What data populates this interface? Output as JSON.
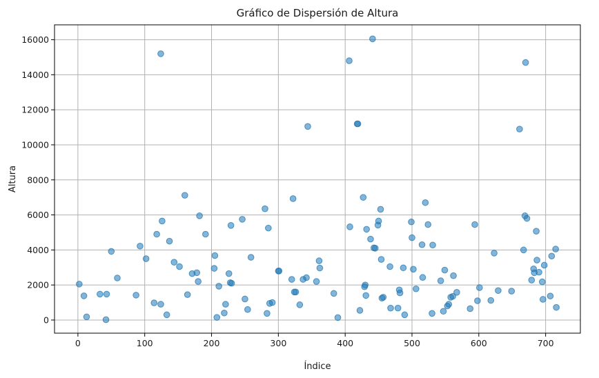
{
  "chart_data": {
    "type": "scatter",
    "title": "Gráfico de Dispersión de Altura",
    "xlabel": "Índice",
    "ylabel": "Altura",
    "xlim": [
      -35,
      752
    ],
    "ylim": [
      -750,
      16850
    ],
    "xticks": [
      0,
      100,
      200,
      300,
      400,
      500,
      600,
      700
    ],
    "yticks": [
      0,
      2000,
      4000,
      6000,
      8000,
      10000,
      12000,
      14000,
      16000
    ],
    "grid": true,
    "marker_color": "#1f77b4",
    "points": [
      [
        2,
        2050
      ],
      [
        9,
        1380
      ],
      [
        13,
        180
      ],
      [
        33,
        1480
      ],
      [
        42,
        20
      ],
      [
        43,
        1480
      ],
      [
        50,
        3920
      ],
      [
        59,
        2400
      ],
      [
        87,
        1420
      ],
      [
        93,
        4220
      ],
      [
        102,
        3500
      ],
      [
        114,
        980
      ],
      [
        118,
        4900
      ],
      [
        124,
        15200
      ],
      [
        124,
        900
      ],
      [
        126,
        5650
      ],
      [
        133,
        300
      ],
      [
        137,
        4500
      ],
      [
        144,
        3300
      ],
      [
        152,
        3050
      ],
      [
        160,
        7120
      ],
      [
        164,
        1450
      ],
      [
        171,
        2650
      ],
      [
        178,
        2700
      ],
      [
        180,
        2200
      ],
      [
        182,
        5950
      ],
      [
        191,
        4900
      ],
      [
        204,
        2950
      ],
      [
        205,
        3680
      ],
      [
        208,
        150
      ],
      [
        211,
        1930
      ],
      [
        219,
        400
      ],
      [
        221,
        900
      ],
      [
        226,
        2650
      ],
      [
        228,
        2130
      ],
      [
        229,
        5400
      ],
      [
        230,
        2100
      ],
      [
        246,
        5750
      ],
      [
        250,
        1200
      ],
      [
        254,
        600
      ],
      [
        259,
        3580
      ],
      [
        280,
        6350
      ],
      [
        283,
        380
      ],
      [
        285,
        5250
      ],
      [
        287,
        950
      ],
      [
        291,
        1000
      ],
      [
        300,
        2800
      ],
      [
        301,
        2800
      ],
      [
        320,
        2320
      ],
      [
        322,
        6930
      ],
      [
        324,
        1600
      ],
      [
        326,
        1600
      ],
      [
        332,
        870
      ],
      [
        337,
        2320
      ],
      [
        342,
        2420
      ],
      [
        344,
        11050
      ],
      [
        357,
        2200
      ],
      [
        361,
        3380
      ],
      [
        362,
        2970
      ],
      [
        383,
        1520
      ],
      [
        389,
        140
      ],
      [
        406,
        14800
      ],
      [
        407,
        5320
      ],
      [
        418,
        11200
      ],
      [
        419,
        11200
      ],
      [
        422,
        550
      ],
      [
        427,
        7000
      ],
      [
        429,
        1900
      ],
      [
        430,
        2000
      ],
      [
        431,
        1400
      ],
      [
        432,
        5180
      ],
      [
        438,
        4620
      ],
      [
        441,
        16050
      ],
      [
        443,
        4120
      ],
      [
        445,
        4100
      ],
      [
        449,
        5420
      ],
      [
        450,
        5650
      ],
      [
        453,
        6320
      ],
      [
        454,
        3460
      ],
      [
        455,
        1250
      ],
      [
        457,
        1300
      ],
      [
        467,
        3050
      ],
      [
        468,
        680
      ],
      [
        479,
        680
      ],
      [
        481,
        1720
      ],
      [
        482,
        1550
      ],
      [
        487,
        2980
      ],
      [
        489,
        300
      ],
      [
        499,
        5600
      ],
      [
        500,
        4700
      ],
      [
        502,
        2900
      ],
      [
        506,
        1780
      ],
      [
        515,
        4300
      ],
      [
        516,
        2430
      ],
      [
        520,
        6700
      ],
      [
        524,
        5450
      ],
      [
        530,
        380
      ],
      [
        531,
        4280
      ],
      [
        543,
        2240
      ],
      [
        547,
        500
      ],
      [
        549,
        2850
      ],
      [
        553,
        800
      ],
      [
        555,
        900
      ],
      [
        558,
        1300
      ],
      [
        561,
        1350
      ],
      [
        562,
        2530
      ],
      [
        567,
        1580
      ],
      [
        587,
        650
      ],
      [
        594,
        5450
      ],
      [
        598,
        1100
      ],
      [
        601,
        1850
      ],
      [
        618,
        1120
      ],
      [
        623,
        3820
      ],
      [
        629,
        1680
      ],
      [
        649,
        1650
      ],
      [
        661,
        10900
      ],
      [
        667,
        4000
      ],
      [
        669,
        5950
      ],
      [
        670,
        14700
      ],
      [
        672,
        5800
      ],
      [
        679,
        2280
      ],
      [
        682,
        2920
      ],
      [
        683,
        2700
      ],
      [
        686,
        5070
      ],
      [
        687,
        3420
      ],
      [
        690,
        2730
      ],
      [
        695,
        2180
      ],
      [
        696,
        1180
      ],
      [
        698,
        3130
      ],
      [
        707,
        1370
      ],
      [
        709,
        3650
      ],
      [
        715,
        4050
      ],
      [
        716,
        720
      ]
    ]
  }
}
